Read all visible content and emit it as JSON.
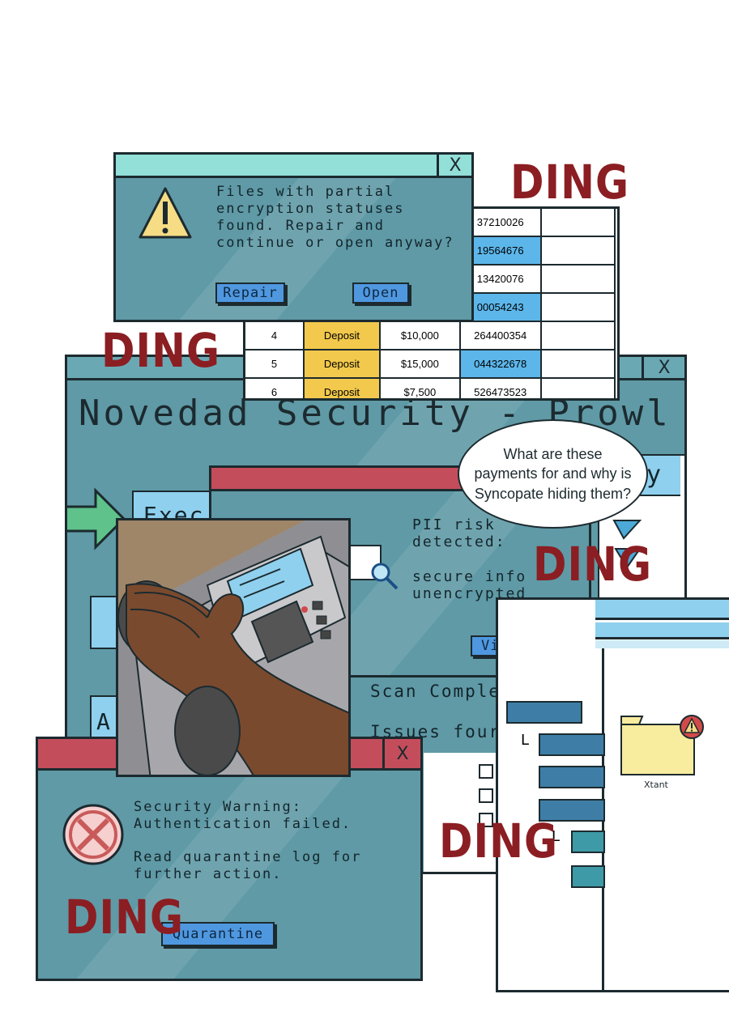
{
  "dings": [
    "DING",
    "DING",
    "DING",
    "DING",
    "DING"
  ],
  "encryption_dialog": {
    "message": "Files with partial encryption statuses found. Repair and continue or open anyway?",
    "repair_label": "Repair",
    "open_label": "Open",
    "close_glyph": "X"
  },
  "payments_table": {
    "rows": [
      {
        "num": "",
        "type": "",
        "amount": "",
        "account": "37210026"
      },
      {
        "num": "",
        "type": "",
        "amount": "",
        "account": "19564676"
      },
      {
        "num": "",
        "type": "",
        "amount": "",
        "account": "13420076"
      },
      {
        "num": "",
        "type": "",
        "amount": "",
        "account": "00054243"
      },
      {
        "num": "4",
        "type": "Deposit",
        "amount": "$10,000",
        "account": "264400354"
      },
      {
        "num": "5",
        "type": "Deposit",
        "amount": "$15,000",
        "account": "044322678"
      },
      {
        "num": "6",
        "type": "Deposit",
        "amount": "$7,500",
        "account": "526473523"
      }
    ],
    "colors": {
      "deposit": "#f2c94c",
      "account_highlight": "#5cb6ea"
    }
  },
  "main_window": {
    "title": "Novedad Security - Prowl",
    "close_glyph": "X",
    "side_label": "ty",
    "scan_complete": "Scan Comple",
    "issues_found": "Issues four",
    "exec_button": "Exec",
    "partial_letter": "A"
  },
  "pii_dialog": {
    "line1": "PII risk",
    "line2": "detected:",
    "line3": "secure info",
    "line4": "unencrypted",
    "view_log_label": "View log"
  },
  "speech_bubble": {
    "text": "What are these payments for and why is Syncopate hiding them?"
  },
  "auth_dialog": {
    "line1": "Security Warning:",
    "line2": "Authentication failed.",
    "line3": "Read quarantine log for",
    "line4": "further action.",
    "quarantine_label": "Quarantine",
    "close_glyph": "X"
  },
  "file_browser": {
    "folder_label": "Xtant"
  },
  "icons": [
    "warning-triangle-icon",
    "close-x-icon",
    "error-circle-icon",
    "magnifier-icon",
    "folder-icon",
    "alert-badge-icon",
    "green-arrow-icon"
  ],
  "colors": {
    "window_body": "#5f9aa6",
    "title_teal": "#92e0d8",
    "title_red": "#c44d5c",
    "button_blue": "#4f98e0",
    "ding_red": "#8b1e22"
  }
}
